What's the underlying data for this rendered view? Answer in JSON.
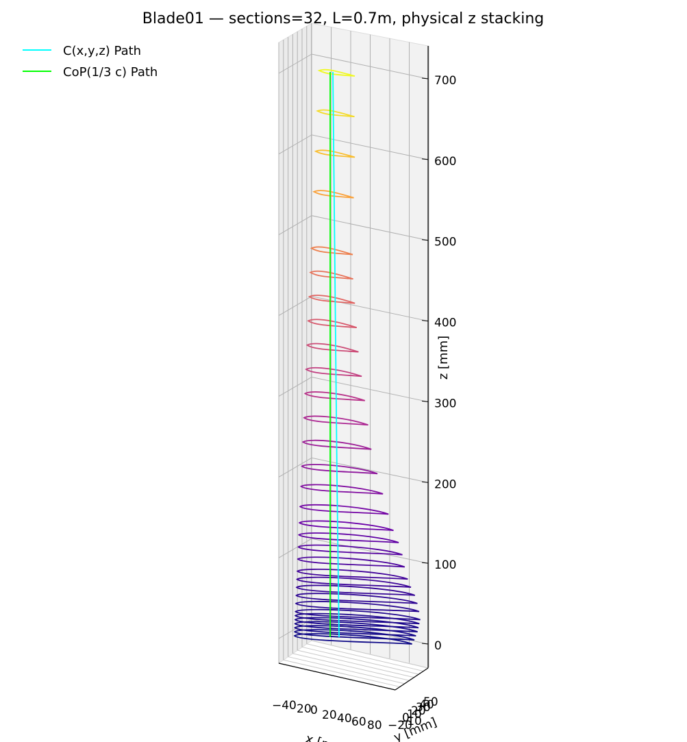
{
  "chart_data": {
    "type": "line3d",
    "title": "Blade01 — sections=32, L=0.7m, physical z stacking",
    "xlabel": "x [mm]",
    "ylabel": "y [mm]",
    "zlabel": "z [mm]",
    "legend": {
      "placement": "top-left",
      "entries": [
        {
          "label": "C(x,y,z) Path",
          "color": "#00ffff"
        },
        {
          "label": "CoP(1/3 c) Path",
          "color": "#00ff00"
        }
      ]
    },
    "x_ticks": [
      "−40",
      "20",
      "0",
      "20",
      "40",
      "60",
      "80"
    ],
    "y_ticks": [
      "−20",
      "−10",
      "0",
      "10",
      "20",
      "30",
      "40",
      "50"
    ],
    "z_ticks": [
      "0",
      "100",
      "200",
      "300",
      "400",
      "500",
      "600",
      "700"
    ],
    "zlim": [
      -30,
      720
    ],
    "grid": true,
    "colormap": [
      "#0d0887",
      "#6a00a8",
      "#b12a90",
      "#e16462",
      "#fca636",
      "#f0f921"
    ],
    "sections": {
      "count": 32,
      "z_values": [
        0,
        5,
        10,
        15,
        20,
        25,
        30,
        40,
        50,
        60,
        70,
        80,
        95,
        110,
        125,
        140,
        160,
        185,
        210,
        240,
        270,
        300,
        330,
        360,
        390,
        420,
        450,
        480,
        550,
        600,
        650,
        700
      ],
      "chord_mm": [
        165,
        168,
        170,
        172,
        173,
        174,
        175,
        173,
        170,
        166,
        160,
        155,
        150,
        146,
        140,
        132,
        124,
        115,
        106,
        96,
        90,
        84,
        78,
        72,
        68,
        64,
        60,
        58,
        56,
        55,
        52,
        50
      ]
    },
    "c_path": {
      "z": [
        0,
        700
      ],
      "x": [
        12,
        3
      ]
    },
    "cop_path": {
      "z": [
        0,
        700
      ],
      "x": [
        -2,
        -2
      ]
    }
  }
}
